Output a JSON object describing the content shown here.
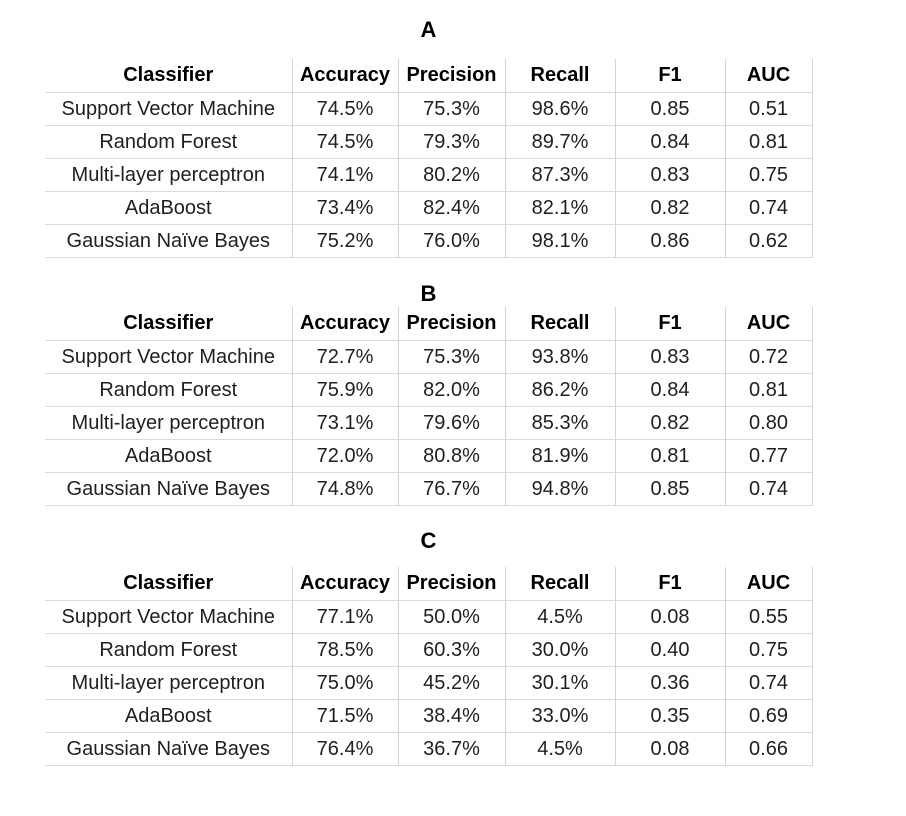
{
  "colors": {
    "background": "#ffffff",
    "grid_line": "#d4d4d4",
    "header_text": "#000000",
    "body_text": "#1f1f1f"
  },
  "tables": [
    {
      "label": "A",
      "headers": [
        "Classifier",
        "Accuracy",
        "Precision",
        "Recall",
        "F1",
        "AUC"
      ],
      "rows": [
        [
          "Support Vector Machine",
          "74.5%",
          "75.3%",
          "98.6%",
          "0.85",
          "0.51"
        ],
        [
          "Random Forest",
          "74.5%",
          "79.3%",
          "89.7%",
          "0.84",
          "0.81"
        ],
        [
          "Multi-layer perceptron",
          "74.1%",
          "80.2%",
          "87.3%",
          "0.83",
          "0.75"
        ],
        [
          "AdaBoost",
          "73.4%",
          "82.4%",
          "82.1%",
          "0.82",
          "0.74"
        ],
        [
          "Gaussian Naïve Bayes",
          "75.2%",
          "76.0%",
          "98.1%",
          "0.86",
          "0.62"
        ]
      ]
    },
    {
      "label": "B",
      "headers": [
        "Classifier",
        "Accuracy",
        "Precision",
        "Recall",
        "F1",
        "AUC"
      ],
      "rows": [
        [
          "Support Vector Machine",
          "72.7%",
          "75.3%",
          "93.8%",
          "0.83",
          "0.72"
        ],
        [
          "Random Forest",
          "75.9%",
          "82.0%",
          "86.2%",
          "0.84",
          "0.81"
        ],
        [
          "Multi-layer perceptron",
          "73.1%",
          "79.6%",
          "85.3%",
          "0.82",
          "0.80"
        ],
        [
          "AdaBoost",
          "72.0%",
          "80.8%",
          "81.9%",
          "0.81",
          "0.77"
        ],
        [
          "Gaussian Naïve Bayes",
          "74.8%",
          "76.7%",
          "94.8%",
          "0.85",
          "0.74"
        ]
      ]
    },
    {
      "label": "C",
      "headers": [
        "Classifier",
        "Accuracy",
        "Precision",
        "Recall",
        "F1",
        "AUC"
      ],
      "rows": [
        [
          "Support Vector Machine",
          "77.1%",
          "50.0%",
          "4.5%",
          "0.08",
          "0.55"
        ],
        [
          "Random Forest",
          "78.5%",
          "60.3%",
          "30.0%",
          "0.40",
          "0.75"
        ],
        [
          "Multi-layer perceptron",
          "75.0%",
          "45.2%",
          "30.1%",
          "0.36",
          "0.74"
        ],
        [
          "AdaBoost",
          "71.5%",
          "38.4%",
          "33.0%",
          "0.35",
          "0.69"
        ],
        [
          "Gaussian Naïve Bayes",
          "76.4%",
          "36.7%",
          "4.5%",
          "0.08",
          "0.66"
        ]
      ]
    }
  ]
}
